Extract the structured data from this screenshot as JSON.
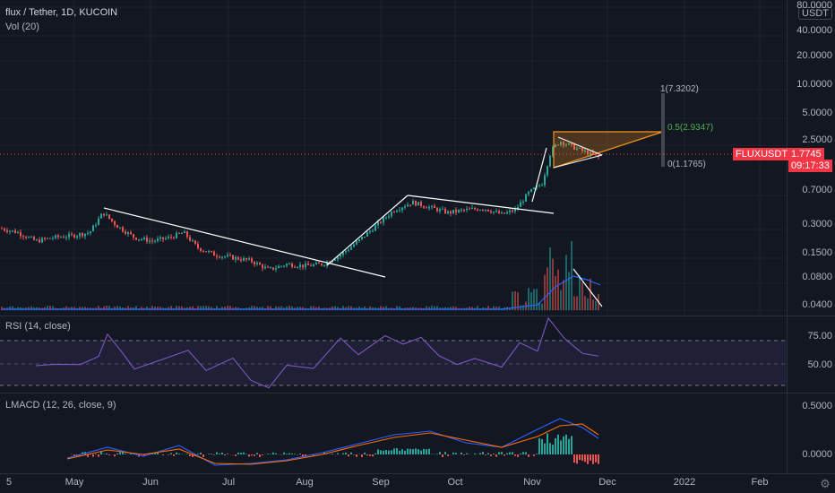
{
  "header": {
    "symbol_title": "flux / Tether, 1D, KUCOIN",
    "volume_label": "Vol (20)",
    "currency_badge": "USDT",
    "gear_icon": "gear-icon"
  },
  "price_axis": {
    "labels": [
      "80.0000",
      "40.0000",
      "20.0000",
      "10.0000",
      "5.0000",
      "2.5000",
      "0.7000",
      "0.3000",
      "0.1500",
      "0.0800",
      "0.0400"
    ]
  },
  "current_price": {
    "symbol": "FLUXUSDT",
    "price": "1.7745",
    "countdown": "09:17:33",
    "color": "#f23645"
  },
  "fibonacci": {
    "top": "1(7.3202)",
    "mid": "0.5(2.9347)",
    "bottom": "0(1.1765)"
  },
  "rsi": {
    "label": "RSI (14, close)",
    "levels": [
      "75.00",
      "50.00"
    ]
  },
  "lmacd": {
    "label": "LMACD (12, 26, close, 9)",
    "levels": [
      "0.5000",
      "0.0000"
    ]
  },
  "time_axis": {
    "labels": [
      "5",
      "May",
      "Jun",
      "Jul",
      "Aug",
      "Sep",
      "Oct",
      "Nov",
      "Dec",
      "2022",
      "Feb"
    ]
  },
  "colors": {
    "background": "#131722",
    "up": "#26a69a",
    "down": "#ef5350",
    "rsi": "#7e57c2",
    "macd": "#2962ff",
    "signal": "#ff6d00",
    "triangle": "#f7931a",
    "fib_mid": "#4caf50"
  },
  "chart_data": [
    {
      "type": "line",
      "title": "flux / Tether, 1D, KUCOIN",
      "x": [
        "Apr 5",
        "May",
        "Jun",
        "Jul",
        "Aug",
        "Sep",
        "Oct",
        "Nov",
        "Dec"
      ],
      "y_scale": "log",
      "series": [
        {
          "name": "FLUXUSDT",
          "values": [
            0.28,
            0.3,
            0.22,
            0.12,
            0.11,
            0.55,
            0.45,
            2.3,
            1.7745
          ]
        }
      ],
      "ylim": [
        0.03,
        80
      ]
    },
    {
      "type": "line",
      "title": "RSI (14, close)",
      "series": [
        {
          "name": "RSI",
          "values": [
            55,
            50,
            75,
            45,
            35,
            65,
            60,
            85,
            52
          ]
        }
      ],
      "ylim": [
        0,
        100
      ]
    }
  ]
}
